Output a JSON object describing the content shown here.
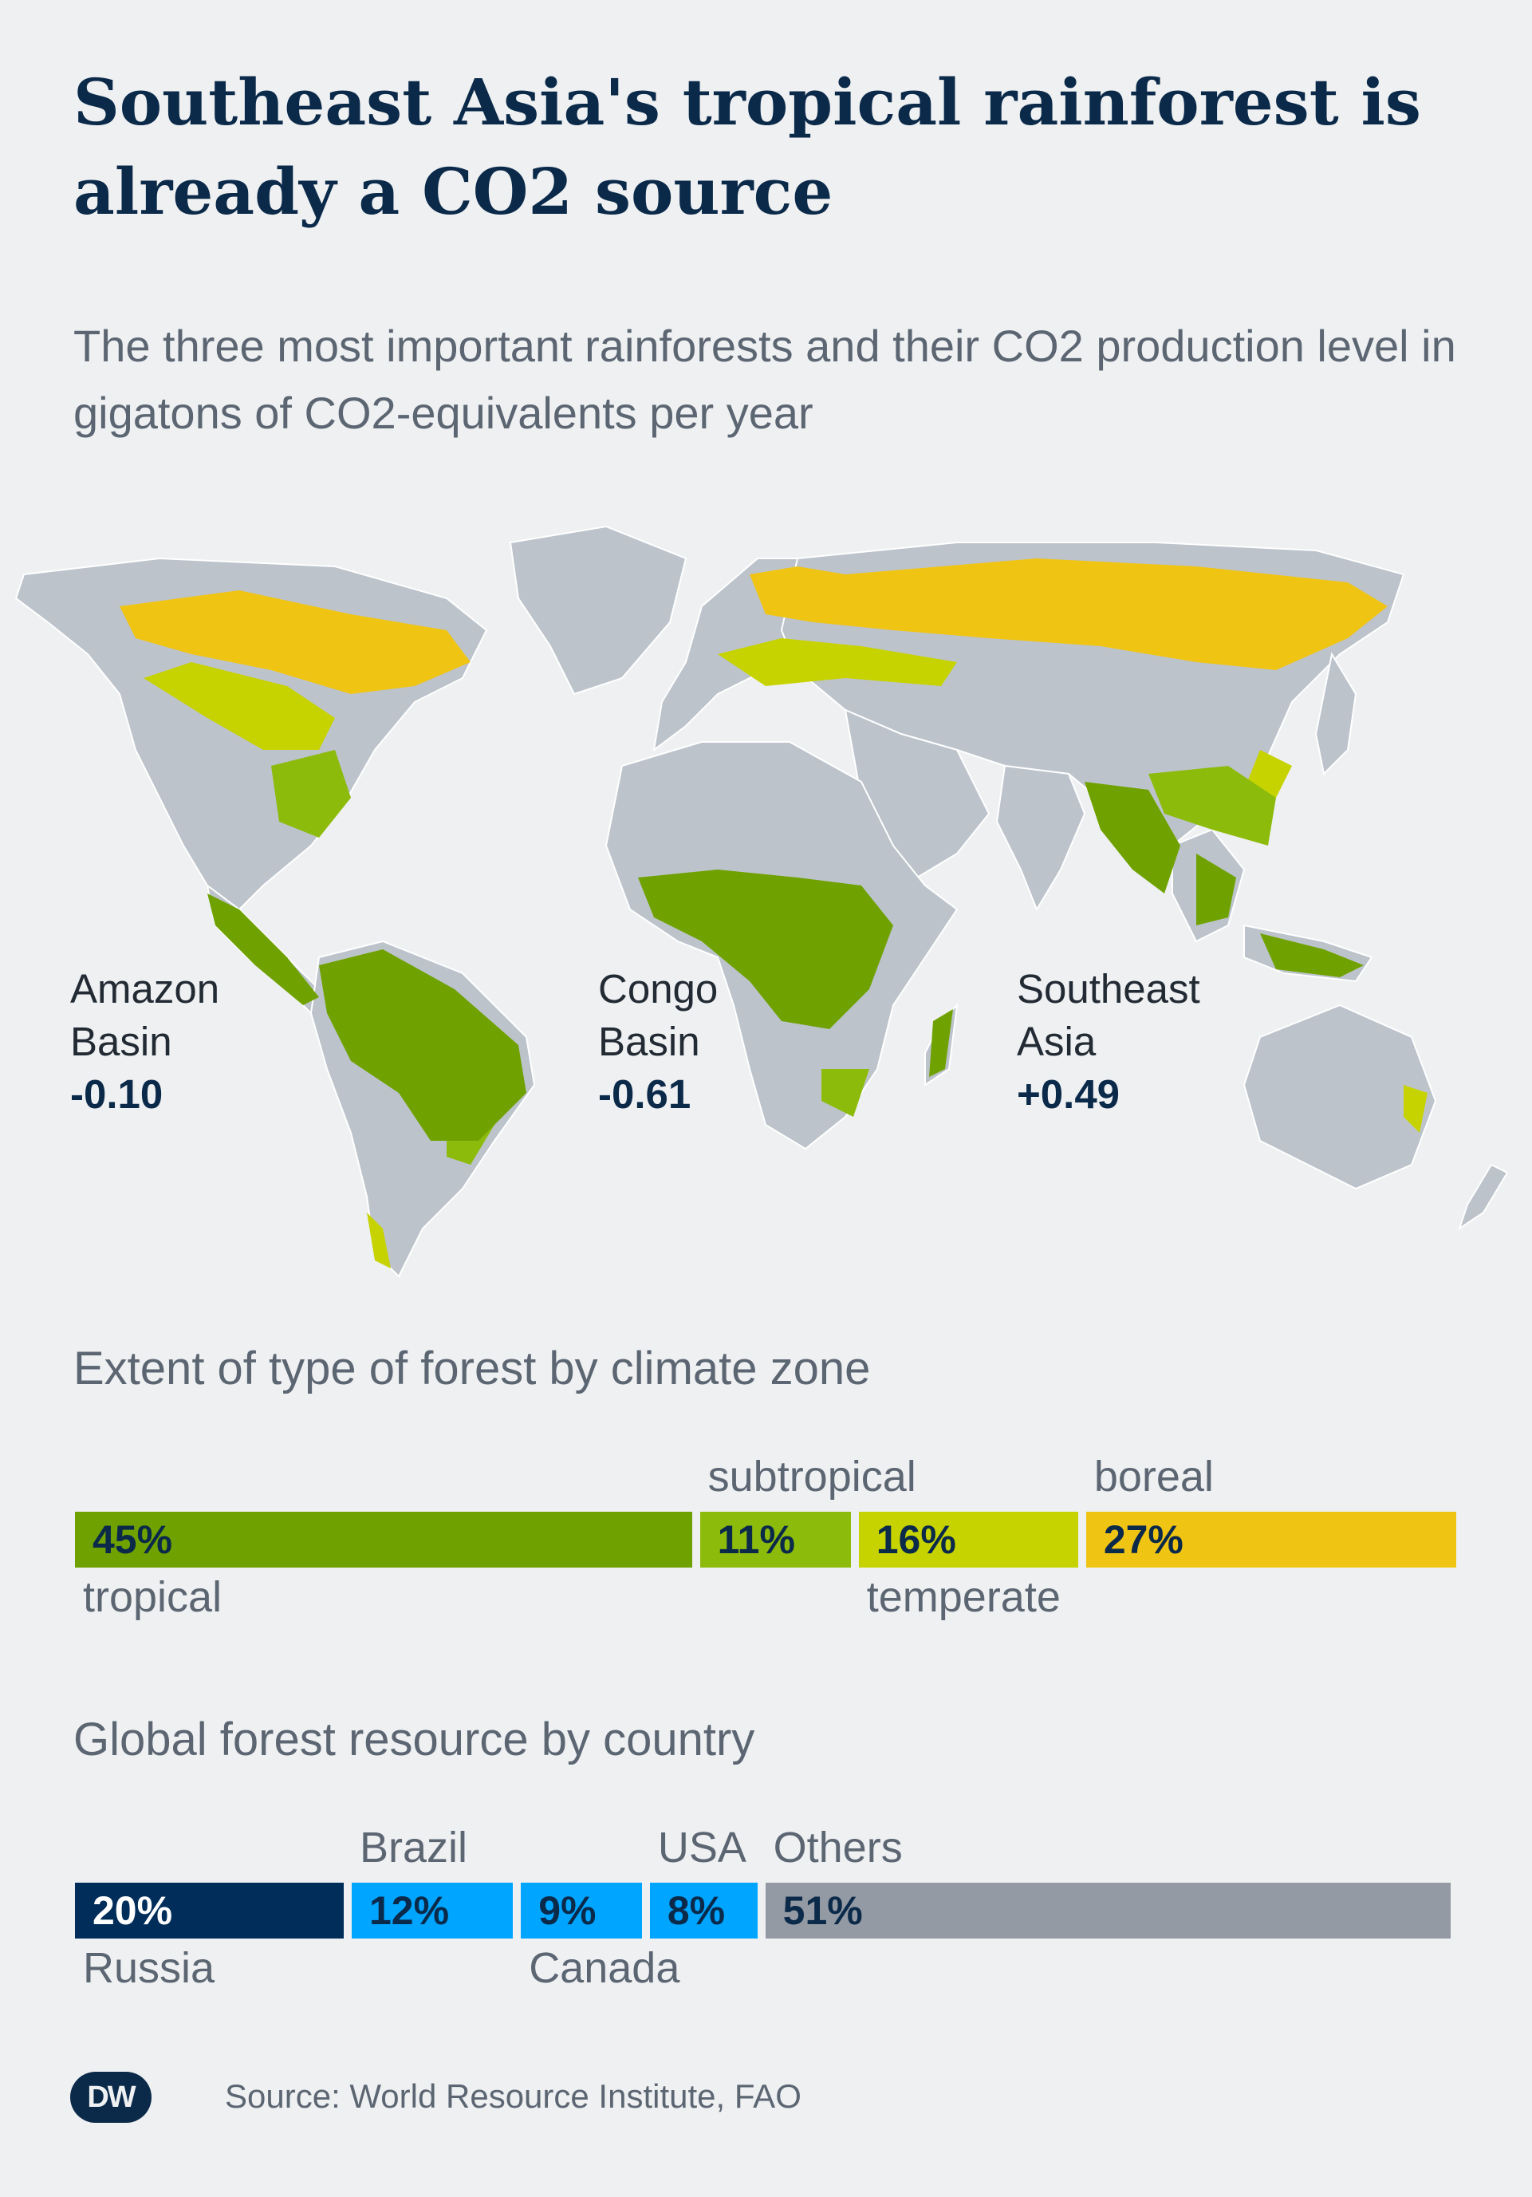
{
  "header": {
    "title": "Southeast Asia's tropical rainforest is already a CO2 source",
    "subtitle": "The three most important rainforests and their CO2 production level in gigatons of CO2-equivalents per year"
  },
  "map": {
    "regions": [
      {
        "name_line1": "Amazon",
        "name_line2": "Basin",
        "value": "-0.10"
      },
      {
        "name_line1": "Congo",
        "name_line2": "Basin",
        "value": "-0.61"
      },
      {
        "name_line1": "Southeast",
        "name_line2": "Asia",
        "value": "+0.49"
      }
    ],
    "colors": {
      "land": "#bcc3cb",
      "tropical": "#6fa200",
      "subtropical": "#8dbb0c",
      "temperate": "#c6d300",
      "boreal": "#f0c413",
      "ocean": "#eef0f2"
    }
  },
  "chart_data": [
    {
      "type": "bar",
      "orientation": "horizontal-stacked",
      "title": "Extent of type of forest by climate zone",
      "categories": [
        "tropical",
        "subtropical",
        "temperate",
        "boreal"
      ],
      "values": [
        45,
        11,
        16,
        27
      ],
      "value_labels": [
        "45%",
        "11%",
        "16%",
        "27%"
      ],
      "colors": [
        "#6fa200",
        "#8dbb0c",
        "#c6d300",
        "#f0c413"
      ],
      "label_positions": [
        "below",
        "above",
        "below",
        "above"
      ]
    },
    {
      "type": "bar",
      "orientation": "horizontal-stacked",
      "title": "Global forest resource by country",
      "categories": [
        "Russia",
        "Brazil",
        "Canada",
        "USA",
        "Others"
      ],
      "values": [
        20,
        12,
        9,
        8,
        51
      ],
      "value_labels": [
        "20%",
        "12%",
        "9%",
        "8%",
        "51%"
      ],
      "colors": [
        "#002d5a",
        "#00a5ff",
        "#00a5ff",
        "#00a5ff",
        "#939aa3"
      ],
      "text_colors": [
        "#ffffff",
        "#0b2a4a",
        "#0b2a4a",
        "#0b2a4a",
        "#0b2a4a"
      ],
      "label_positions": [
        "below",
        "above",
        "below",
        "above",
        "above"
      ]
    }
  ],
  "footer": {
    "logo_text": "DW",
    "source": "Source: World Resource Institute, FAO"
  }
}
